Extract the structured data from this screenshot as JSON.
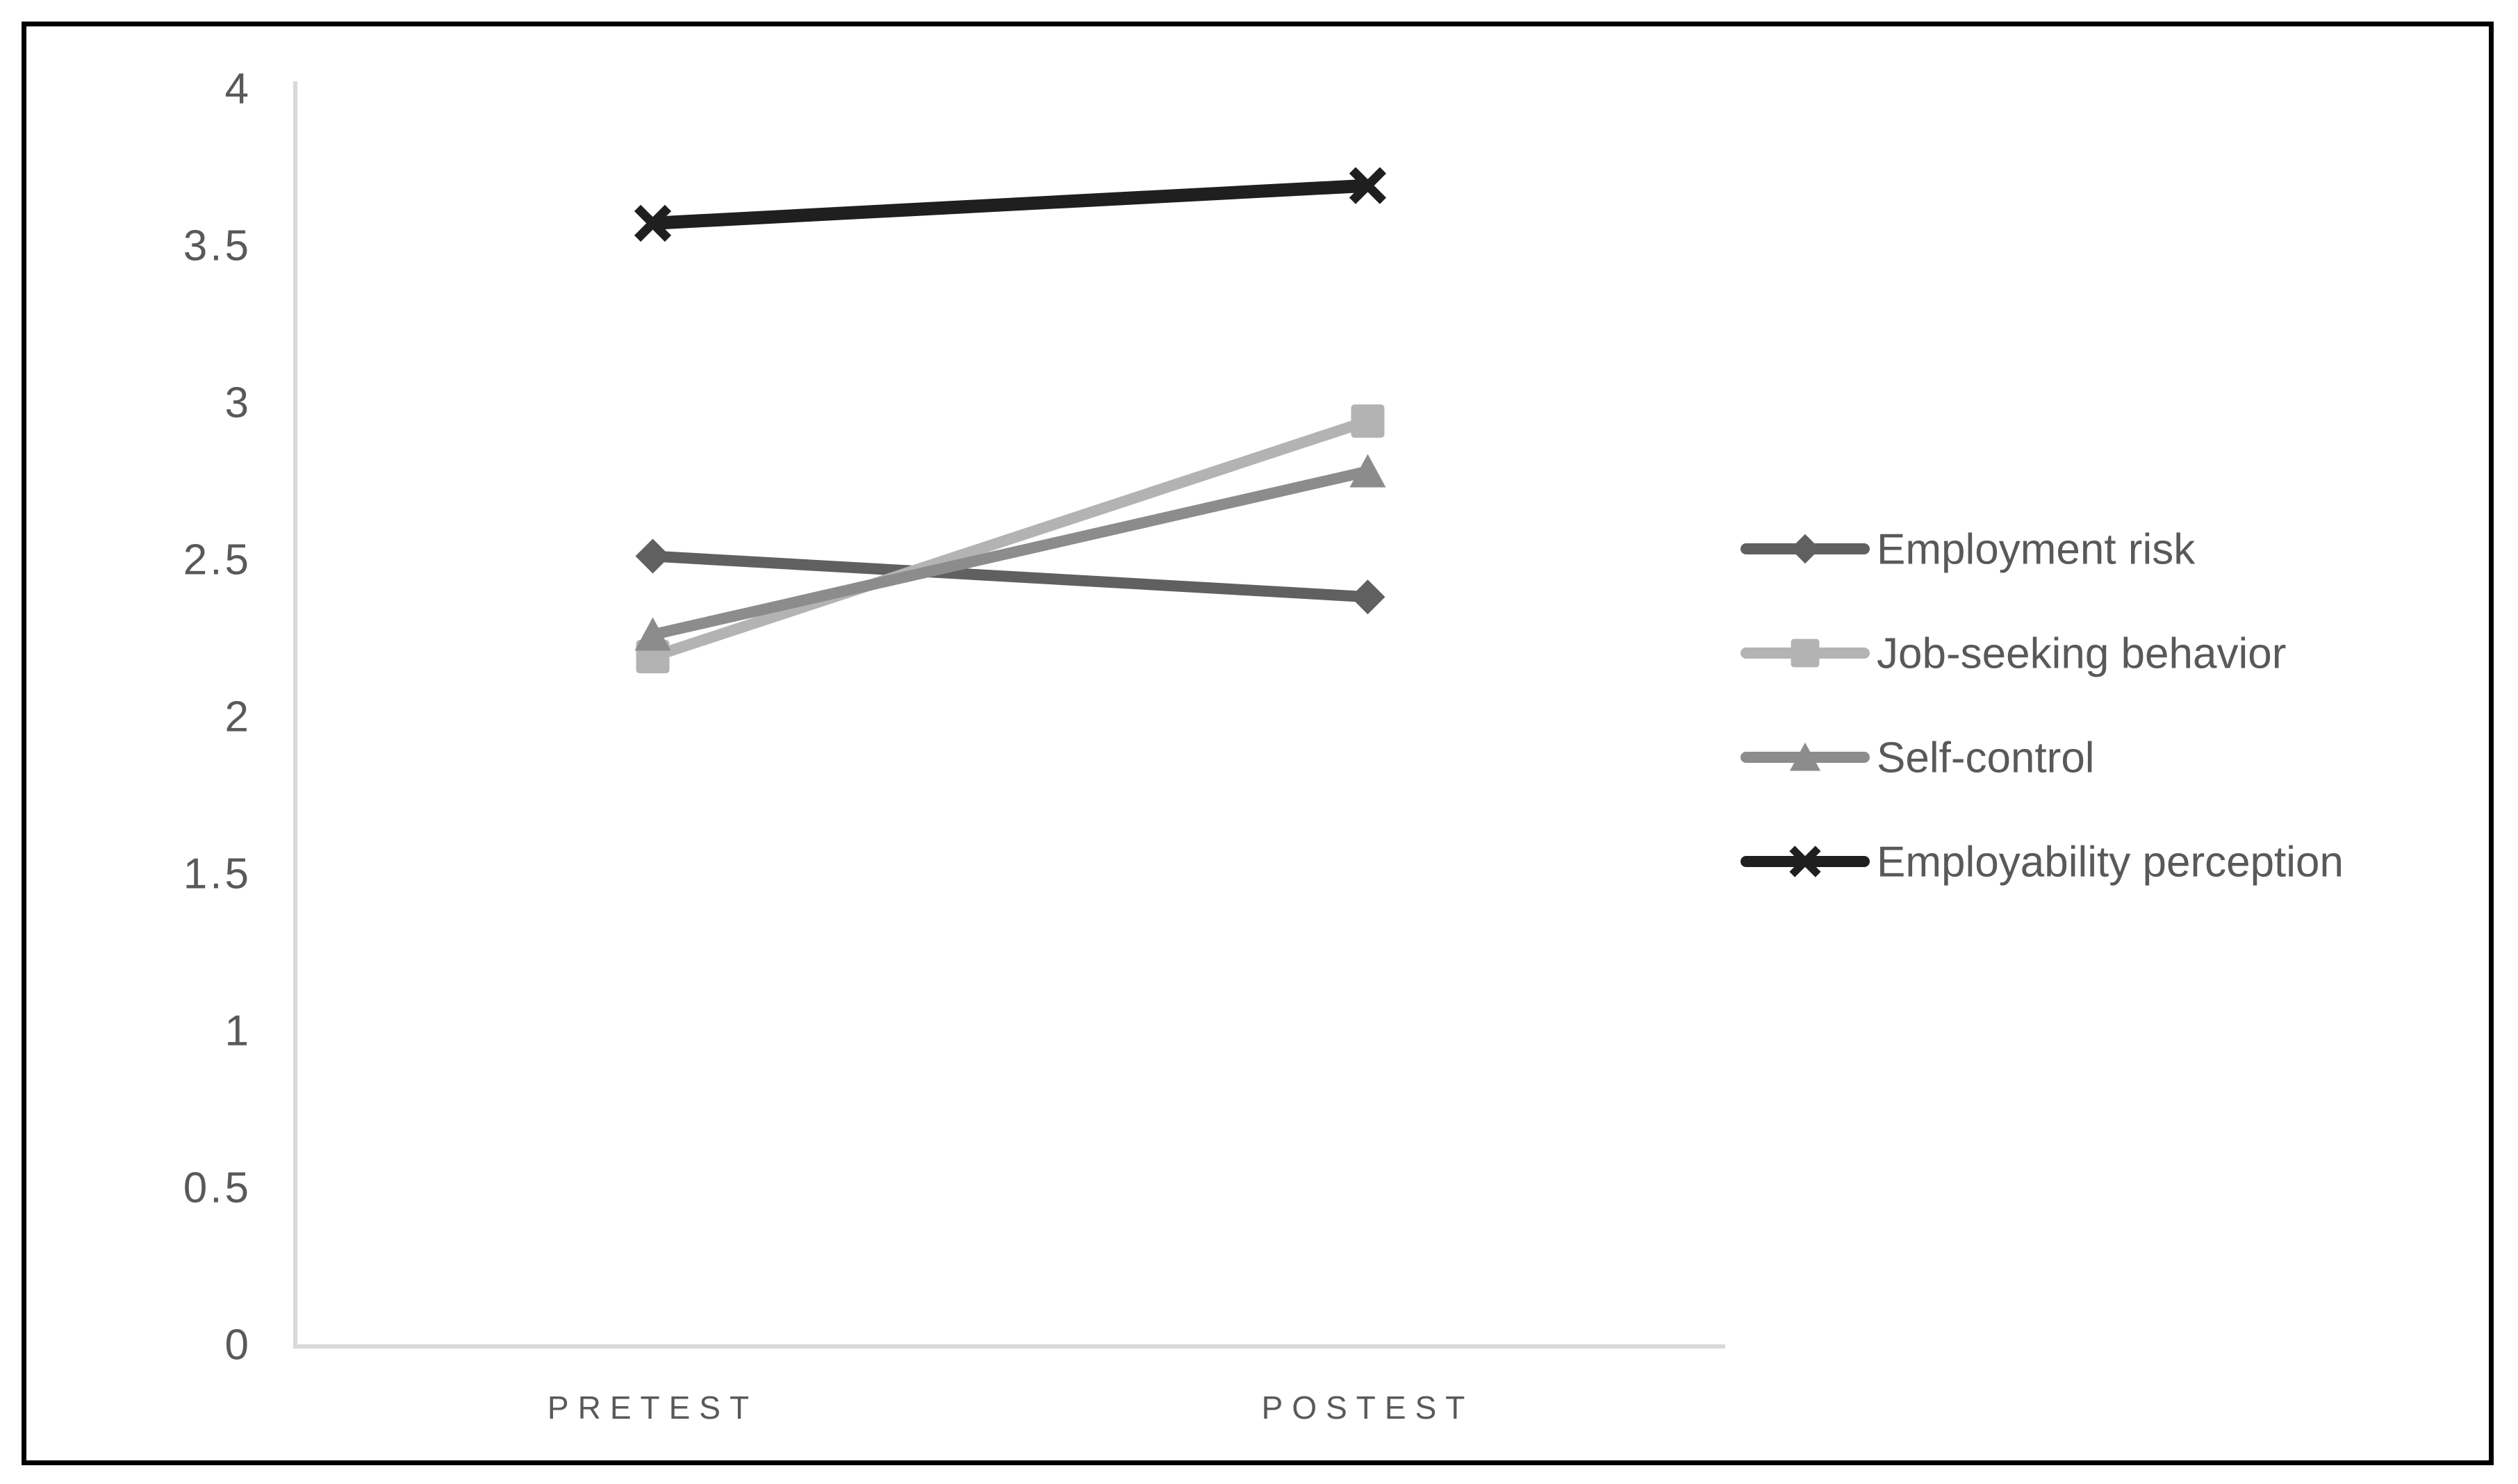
{
  "figure": {
    "background_color": "#ffffff",
    "frame_color": "#000000",
    "axis_line_color": "#d9d9d9",
    "tick_label_color": "#595959",
    "legend_text_color": "#595959"
  },
  "chart_data": {
    "type": "line",
    "title": "",
    "xlabel": "",
    "ylabel": "",
    "categories": [
      "PRETEST",
      "POSTEST"
    ],
    "series": [
      {
        "name": "Employment risk",
        "values": [
          2.51,
          2.38
        ],
        "color": "#606060",
        "marker": "diamond",
        "line_width": 16
      },
      {
        "name": "Job-seeking behavior",
        "values": [
          2.19,
          2.94
        ],
        "color": "#b3b3b3",
        "marker": "square",
        "line_width": 16
      },
      {
        "name": "Self-control",
        "values": [
          2.26,
          2.78
        ],
        "color": "#8c8c8c",
        "marker": "triangle",
        "line_width": 16
      },
      {
        "name": "Employability perception",
        "values": [
          3.57,
          3.69
        ],
        "color": "#1f1f1f",
        "marker": "x",
        "line_width": 19
      }
    ],
    "ylim": [
      0,
      4
    ],
    "ytick_step": 0.5,
    "ytick_labels": [
      "0",
      "0.5",
      "1",
      "1.5",
      "2",
      "2.5",
      "3",
      "3.5",
      "4"
    ],
    "grid": false,
    "legend_position": "right"
  }
}
